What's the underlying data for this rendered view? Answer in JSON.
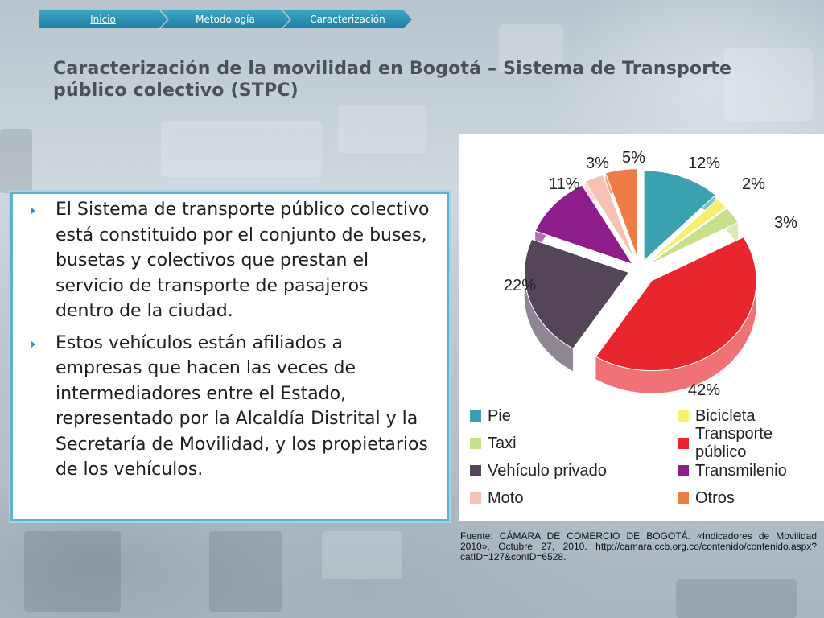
{
  "breadcrumb": [
    {
      "label": "Inicio",
      "active": true
    },
    {
      "label": "Metodología",
      "active": false
    },
    {
      "label": "Caracterización",
      "active": false
    }
  ],
  "title": "Caracterización de la movilidad en Bogotá – Sistema de Transporte público colectivo (STPC)",
  "bullets": [
    "El Sistema de transporte público colectivo está constituido por el conjunto de buses, busetas y colectivos que prestan el servicio de transporte de pasajeros dentro de la ciudad.",
    "Estos vehículos están afiliados a empresas que hacen las veces de intermediadores entre el Estado, representado por la Alcaldía Distrital y la Secretaría de Movilidad, y los propietarios de los vehículos."
  ],
  "source": "Fuente: CÁMARA DE COMERCIO DE BOGOTÁ. «Indicadores de Movilidad 2010», Octubre 27, 2010. http://camara.ccb.org.co/contenido/contenido.aspx?catID=127&conID=6528.",
  "chart_data": {
    "type": "pie",
    "title": "",
    "slices": [
      {
        "name": "Pie",
        "value": 12,
        "label": "12%",
        "color": "#3aa1b1"
      },
      {
        "name": "Bicicleta",
        "value": 2,
        "label": "2%",
        "color": "#f7f06a"
      },
      {
        "name": "Taxi",
        "value": 3,
        "label": "3%",
        "color": "#c8e08a"
      },
      {
        "name": "Transporte público",
        "value": 42,
        "label": "42%",
        "color": "#e8262d"
      },
      {
        "name": "Vehículo privado",
        "value": 22,
        "label": "22%",
        "color": "#544559"
      },
      {
        "name": "Transmilenio",
        "value": 11,
        "label": "11%",
        "color": "#8e1c8a"
      },
      {
        "name": "Moto",
        "value": 3,
        "label": "3%",
        "color": "#f6c2b4"
      },
      {
        "name": "Otros",
        "value": 5,
        "label": "5%",
        "color": "#ee7d45"
      }
    ],
    "legend_placement": "bottom"
  }
}
